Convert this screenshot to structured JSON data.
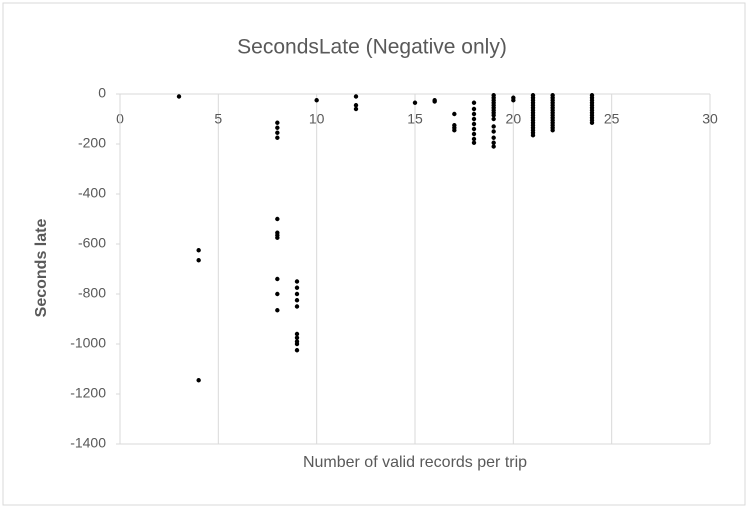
{
  "chart_data": {
    "type": "scatter",
    "title": "SecondsLate (Negative only)",
    "x_label": "Number of valid records per trip",
    "y_label": "Seconds late",
    "x": [
      3,
      4,
      4,
      4,
      8,
      8,
      8,
      8,
      8,
      8,
      8,
      8,
      8,
      8,
      8,
      9,
      9,
      9,
      9,
      9,
      9,
      9,
      9,
      9,
      9,
      10,
      12,
      12,
      12,
      15,
      16,
      16,
      17,
      17,
      17,
      17,
      18,
      18,
      18,
      18,
      18,
      18,
      18,
      18,
      18,
      19,
      19,
      19,
      19,
      19,
      19,
      19,
      19,
      19,
      19,
      19,
      19,
      19,
      19,
      19,
      20,
      20,
      21,
      21,
      21,
      21,
      21,
      21,
      21,
      21,
      21,
      21,
      21,
      21,
      21,
      21,
      21,
      21,
      21,
      22,
      22,
      22,
      22,
      22,
      22,
      22,
      22,
      22,
      22,
      22,
      22,
      22,
      22,
      22,
      24,
      24,
      24,
      24,
      24,
      24,
      24,
      24,
      24,
      24,
      24,
      24
    ],
    "values": [
      -10,
      -625,
      -665,
      -1145,
      -115,
      -135,
      -155,
      -175,
      -500,
      -555,
      -565,
      -575,
      -740,
      -800,
      -865,
      -750,
      -775,
      -800,
      -825,
      -850,
      -960,
      -975,
      -990,
      -1000,
      -1025,
      -25,
      -10,
      -45,
      -60,
      -35,
      -25,
      -30,
      -80,
      -125,
      -135,
      -145,
      -35,
      -60,
      -80,
      -100,
      -120,
      -140,
      -160,
      -180,
      -195,
      -5,
      -15,
      -25,
      -35,
      -45,
      -55,
      -65,
      -75,
      -85,
      -100,
      -130,
      -150,
      -175,
      -195,
      -210,
      -15,
      -25,
      -5,
      -15,
      -25,
      -35,
      -45,
      -55,
      -65,
      -75,
      -85,
      -95,
      -105,
      -115,
      -125,
      -135,
      -145,
      -155,
      -165,
      -5,
      -15,
      -25,
      -35,
      -45,
      -55,
      -65,
      -75,
      -85,
      -95,
      -105,
      -115,
      -125,
      -135,
      -145,
      -5,
      -15,
      -25,
      -35,
      -45,
      -55,
      -65,
      -75,
      -85,
      -95,
      -105,
      -115
    ],
    "color": "#000000",
    "xlim": [
      0,
      30
    ],
    "xticks": [
      0,
      5,
      10,
      15,
      20,
      25,
      30
    ],
    "ylim": [
      -1400,
      0
    ],
    "yticks": [
      0,
      -200,
      -400,
      -600,
      -800,
      -1000,
      -1200,
      -1400
    ],
    "grid": true
  }
}
